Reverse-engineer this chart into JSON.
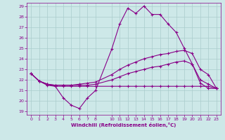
{
  "title": "",
  "xlabel": "Windchill (Refroidissement éolien,°C)",
  "bg_color": "#cde8e8",
  "line_color": "#880088",
  "grid_color": "#aacccc",
  "ylim": [
    19,
    29
  ],
  "yticks": [
    19,
    20,
    21,
    22,
    23,
    24,
    25,
    26,
    27,
    28,
    29
  ],
  "xticks": [
    0,
    1,
    2,
    3,
    4,
    5,
    6,
    7,
    8,
    10,
    11,
    12,
    13,
    14,
    15,
    16,
    17,
    18,
    19,
    20,
    21,
    22,
    23
  ],
  "line1_x": [
    0,
    1,
    2,
    3,
    4,
    5,
    6,
    7,
    8,
    10,
    11,
    12,
    13,
    14,
    15,
    16,
    17,
    18,
    19,
    20,
    21,
    22,
    23
  ],
  "line1_y": [
    22.6,
    21.9,
    21.5,
    21.4,
    20.3,
    19.6,
    19.3,
    20.3,
    21.0,
    24.9,
    27.3,
    28.8,
    28.3,
    29.0,
    28.2,
    28.2,
    27.3,
    26.5,
    25.0,
    23.5,
    21.7,
    21.2,
    21.2
  ],
  "line2_x": [
    0,
    1,
    2,
    3,
    4,
    5,
    6,
    7,
    8,
    10,
    11,
    12,
    13,
    14,
    15,
    16,
    17,
    18,
    19,
    20,
    21,
    22,
    23
  ],
  "line2_y": [
    22.6,
    21.9,
    21.6,
    21.4,
    21.4,
    21.4,
    21.4,
    21.4,
    21.4,
    21.4,
    21.4,
    21.4,
    21.4,
    21.4,
    21.4,
    21.4,
    21.4,
    21.4,
    21.4,
    21.4,
    21.4,
    21.4,
    21.2
  ],
  "line3_x": [
    0,
    1,
    2,
    3,
    4,
    5,
    6,
    7,
    8,
    10,
    11,
    12,
    13,
    14,
    15,
    16,
    17,
    18,
    19,
    20,
    21,
    22,
    23
  ],
  "line3_y": [
    22.6,
    21.9,
    21.6,
    21.5,
    21.5,
    21.5,
    21.5,
    21.5,
    21.6,
    22.0,
    22.3,
    22.6,
    22.8,
    23.0,
    23.2,
    23.3,
    23.5,
    23.7,
    23.8,
    23.5,
    22.0,
    21.6,
    21.2
  ],
  "line4_x": [
    0,
    1,
    2,
    3,
    4,
    5,
    6,
    7,
    8,
    10,
    11,
    12,
    13,
    14,
    15,
    16,
    17,
    18,
    19,
    20,
    21,
    22,
    23
  ],
  "line4_y": [
    22.6,
    21.9,
    21.6,
    21.5,
    21.5,
    21.5,
    21.6,
    21.7,
    21.8,
    22.5,
    23.0,
    23.4,
    23.7,
    24.0,
    24.2,
    24.4,
    24.5,
    24.7,
    24.8,
    24.5,
    23.0,
    22.5,
    21.2
  ]
}
